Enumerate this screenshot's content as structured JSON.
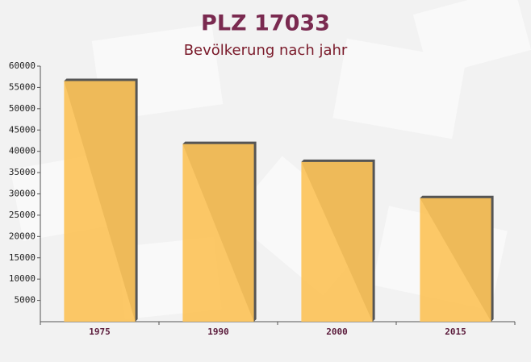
{
  "chart_data": {
    "type": "bar",
    "title": "PLZ 17033",
    "subtitle": "Bevölkerung nach jahr",
    "categories": [
      "1975",
      "1990",
      "2000",
      "2015"
    ],
    "values": [
      56500,
      41700,
      37500,
      29000
    ],
    "color": "#fcc35a",
    "ylim": [
      0,
      60000
    ],
    "yticks": [
      5000,
      10000,
      15000,
      20000,
      25000,
      30000,
      35000,
      40000,
      45000,
      50000,
      55000,
      60000
    ],
    "grid": false
  }
}
